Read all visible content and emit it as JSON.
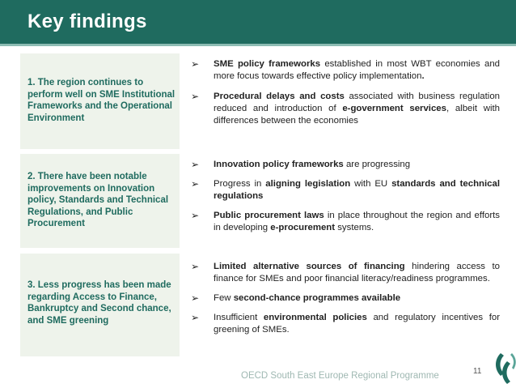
{
  "header": {
    "title": "Key findings"
  },
  "sections": [
    {
      "label": "1. The region continues to perform well on SME Institutional Frameworks and the Operational Environment",
      "bullets": [
        [
          {
            "t": "SME policy frameworks",
            "b": true
          },
          {
            "t": " established in most WBT economies and more focus towards effective policy implementation"
          },
          {
            "t": ".",
            "b": true
          }
        ],
        [
          {
            "t": "Procedural delays and costs",
            "b": true
          },
          {
            "t": " associated with business regulation reduced and introduction of "
          },
          {
            "t": "e-government services",
            "b": true
          },
          {
            "t": ", albeit with differences between the economies"
          }
        ]
      ]
    },
    {
      "label": "2. There have been notable improvements on Innovation policy, Standards and Technical Regulations, and Public Procurement",
      "bullets": [
        [
          {
            "t": "Innovation policy frameworks",
            "b": true
          },
          {
            "t": " are progressing"
          }
        ],
        [
          {
            "t": "Progress in "
          },
          {
            "t": "aligning legislation",
            "b": true
          },
          {
            "t": " with EU "
          },
          {
            "t": "standards and technical regulations",
            "b": true
          }
        ],
        [
          {
            "t": "Public procurement laws",
            "b": true
          },
          {
            "t": " in place throughout the region and efforts in developing "
          },
          {
            "t": "e-procurement",
            "b": true
          },
          {
            "t": " systems."
          }
        ]
      ]
    },
    {
      "label": "3. Less progress has been made regarding Access to Finance, Bankruptcy and Second chance, and SME greening",
      "bullets": [
        [
          {
            "t": "Limited alternative sources of financing",
            "b": true
          },
          {
            "t": " hindering access to finance for SMEs and poor financial literacy/readiness programmes."
          }
        ],
        [
          {
            "t": "Few "
          },
          {
            "t": "second-chance programmes available",
            "b": true
          }
        ],
        [
          {
            "t": "Insufficient "
          },
          {
            "t": "environmental policies",
            "b": true
          },
          {
            "t": " and regulatory incentives for greening of SMEs."
          }
        ]
      ]
    }
  ],
  "footer": {
    "text": "OECD South East Europe Regional Programme",
    "page": "11"
  },
  "colors": {
    "header": "#1f6b5f",
    "accent": "#8dbcb3",
    "box": "#eef3eb"
  },
  "icons": {
    "bullet": "arrow-bullet-icon",
    "logo": "oecd-logo-icon"
  }
}
